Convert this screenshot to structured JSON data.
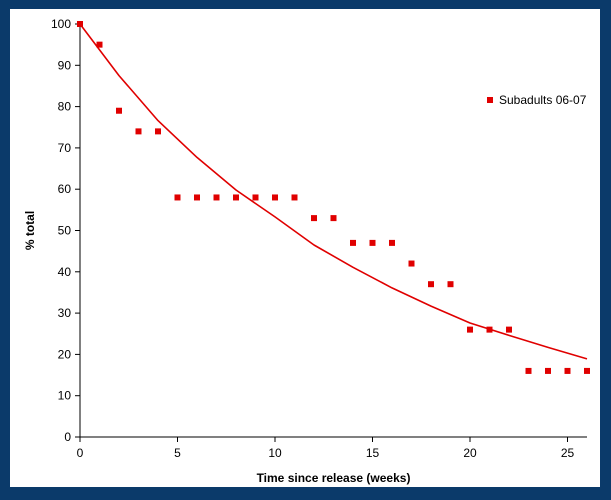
{
  "colors": {
    "background": "#0b3a6a",
    "plot_area": "#ffffff",
    "series": "#e00000",
    "axis": "#000000"
  },
  "chart_data": {
    "type": "scatter",
    "title": "",
    "xlabel": "Time since release (weeks)",
    "ylabel": "% total",
    "xlim": [
      0,
      26
    ],
    "ylim": [
      0,
      100
    ],
    "xticks": [
      0,
      5,
      10,
      15,
      20,
      25
    ],
    "yticks": [
      0,
      10,
      20,
      30,
      40,
      50,
      60,
      70,
      80,
      90,
      100
    ],
    "grid": false,
    "legend_position": "top-right",
    "series": [
      {
        "name": "Subadults 06-07",
        "marker": "square",
        "color": "#e00000",
        "x": [
          0,
          1,
          2,
          3,
          4,
          5,
          6,
          7,
          8,
          9,
          10,
          11,
          12,
          13,
          14,
          15,
          16,
          17,
          18,
          19,
          20,
          21,
          22,
          23,
          24,
          25,
          26
        ],
        "y": [
          100,
          95,
          79,
          74,
          74,
          58,
          58,
          58,
          58,
          58,
          58,
          58,
          53,
          53,
          47,
          47,
          47,
          42,
          37,
          37,
          26,
          26,
          26,
          16,
          16,
          16,
          16
        ]
      }
    ],
    "fit_line": {
      "color": "#e00000",
      "x": [
        0,
        2,
        4,
        6,
        8,
        10,
        12,
        14,
        16,
        18,
        20,
        22,
        24,
        26
      ],
      "y": [
        100,
        87.5,
        76.6,
        67.7,
        59.8,
        53.3,
        46.5,
        41.1,
        36.1,
        31.7,
        27.6,
        24.6,
        21.7,
        18.9
      ]
    }
  }
}
